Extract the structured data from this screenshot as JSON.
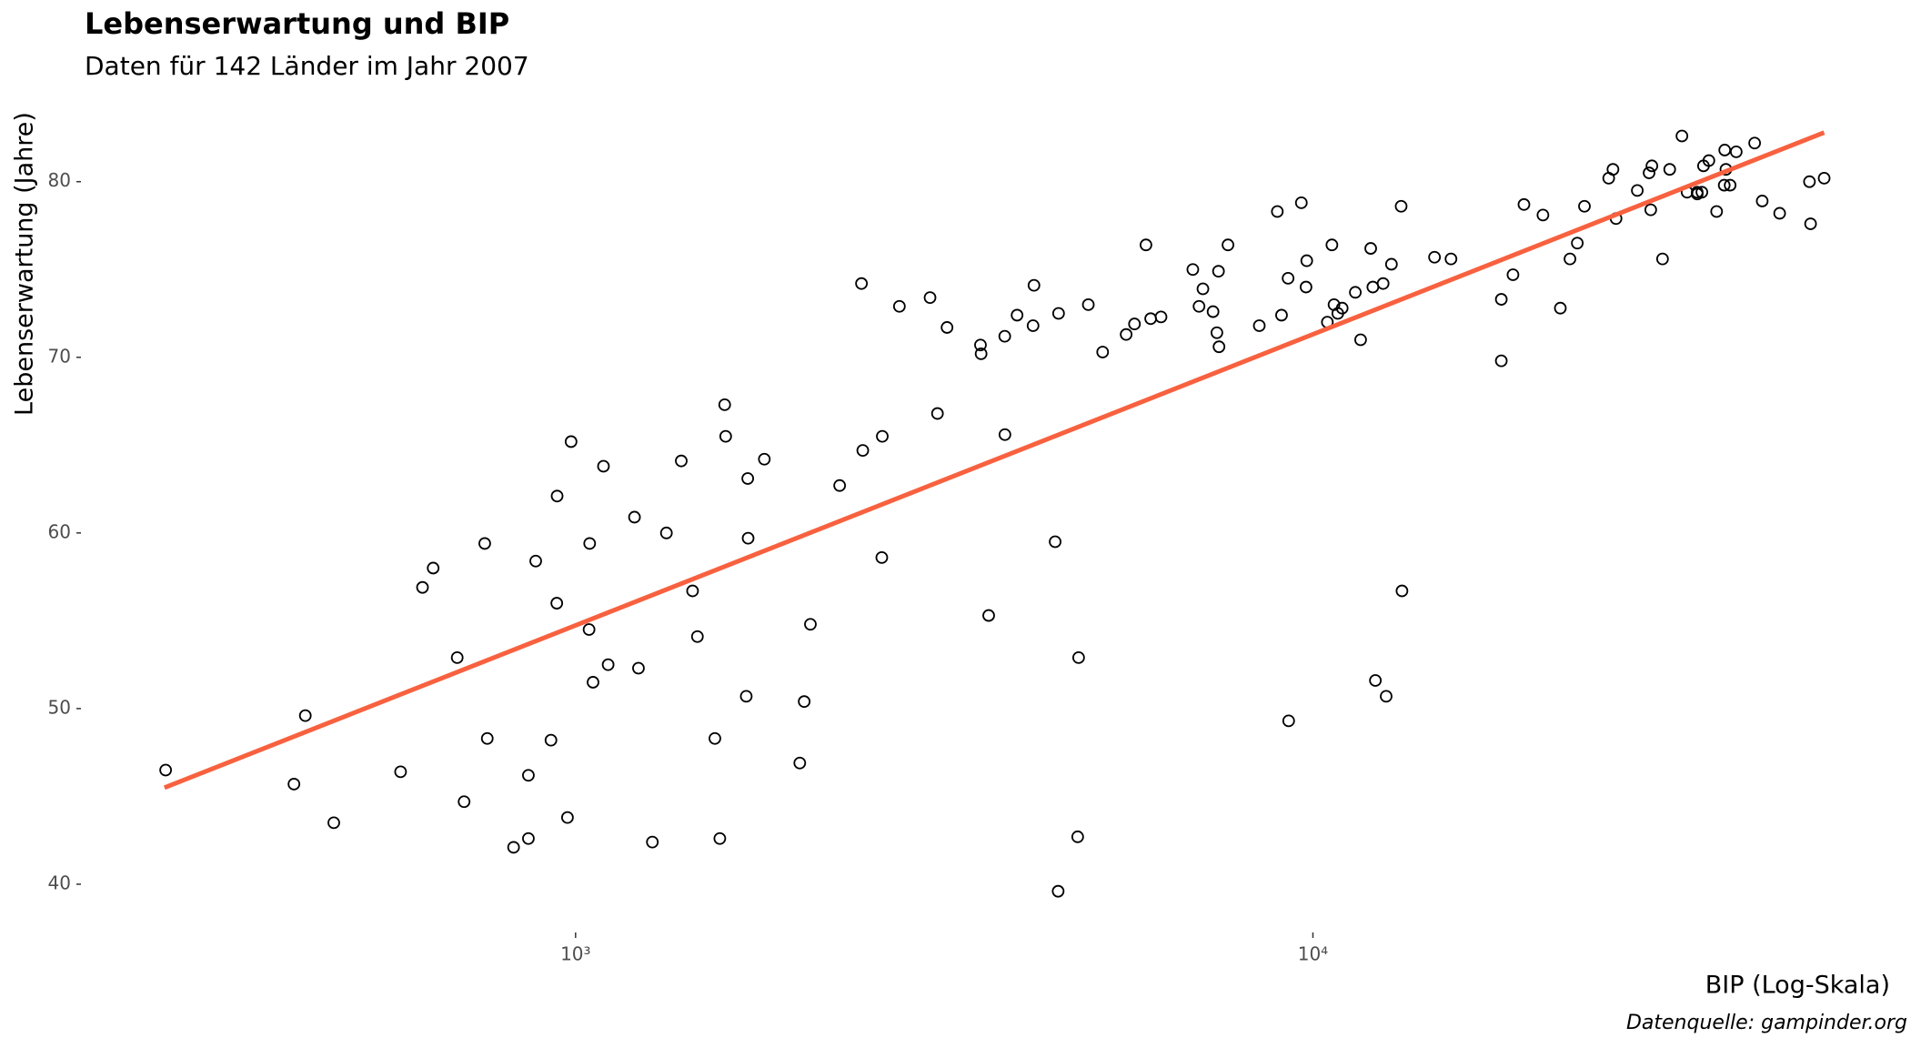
{
  "chart_data": {
    "type": "scatter",
    "title": "Lebenserwartung und BIP",
    "subtitle": "Daten für 142 Länder im Jahr 2007",
    "x_label": "BIP (Log-Skala)",
    "y_label": "Lebenserwartung (Jahre)",
    "caption": "Datenquelle: gampinder.org",
    "x_scale": "log",
    "grid": false,
    "color": "#000000",
    "xlim": [
      214,
      64000
    ],
    "ylim": [
      37.46,
      84.75
    ],
    "xticks": [
      {
        "value": 1000,
        "label": "10³"
      },
      {
        "value": 10000,
        "label": "10⁴"
      }
    ],
    "yticks": [
      40,
      50,
      60,
      70,
      80
    ],
    "x": [
      975,
      5937,
      6223,
      4797,
      12779,
      34435,
      36126,
      29796,
      1391,
      33693,
      1441,
      3822,
      7446,
      12570,
      9066,
      10681,
      1217,
      430,
      1714,
      2042,
      36319,
      706,
      1704,
      13172,
      4959,
      7007,
      986,
      278,
      3633,
      9645,
      1545,
      14619,
      8948,
      22833,
      35278,
      2082,
      6025,
      6873,
      5581,
      5728,
      12154,
      641,
      691,
      33207,
      30470,
      13206,
      753,
      32170,
      1328,
      27538,
      5186,
      943,
      579,
      1202,
      3548,
      39725,
      18009,
      36181,
      2452,
      3541,
      11606,
      4471,
      40676,
      25523,
      28570,
      7321,
      31656,
      4519,
      1463,
      1593,
      23348,
      47307,
      10461,
      1569,
      415,
      12058,
      1045,
      759,
      12452,
      1043,
      1803,
      10957,
      11978,
      3096,
      9254,
      3820,
      824,
      944,
      4811,
      1091,
      36798,
      25185,
      2749,
      620,
      2014,
      49357,
      22316,
      2606,
      9809,
      4173,
      7409,
      3190,
      15390,
      20510,
      19329,
      7670,
      10808,
      863,
      1598,
      21655,
      1712,
      9787,
      863,
      47143,
      18678,
      25768,
      926,
      9270,
      28821,
      3970,
      2602,
      4513,
      33860,
      37506,
      4185,
      28718,
      1107,
      7458,
      883,
      18009,
      7093,
      8458,
      1056,
      33203,
      42952,
      10611,
      11416,
      2442,
      3025,
      2281,
      1271,
      470
    ],
    "values": [
      43.8,
      76.4,
      72.3,
      42.7,
      75.3,
      81.2,
      79.8,
      75.6,
      64.1,
      79.4,
      56.7,
      65.6,
      74.9,
      50.7,
      72.4,
      73,
      52.3,
      49.6,
      59.7,
      50.4,
      80.7,
      44.7,
      50.7,
      78.6,
      73,
      72.9,
      65.2,
      46.5,
      55.3,
      78.8,
      48.3,
      75.7,
      78.3,
      76.5,
      78.3,
      54.8,
      72.2,
      75,
      71.3,
      71.9,
      51.6,
      58,
      52.9,
      79.3,
      80.7,
      56.7,
      59.4,
      79.4,
      60,
      79.5,
      70.3,
      56,
      46.4,
      60.9,
      70.2,
      82.2,
      73.3,
      81.8,
      64.7,
      70.7,
      71,
      59.5,
      78.9,
      80.7,
      80.5,
      72.6,
      82.6,
      72.5,
      54.1,
      67.3,
      78.6,
      77.6,
      72,
      42.6,
      45.7,
      74,
      59.4,
      48.3,
      74.2,
      54.5,
      64.2,
      72.8,
      76.2,
      66.8,
      74.5,
      71.2,
      42.1,
      62.1,
      52.9,
      63.8,
      79.8,
      80.2,
      72.9,
      56.9,
      46.9,
      80.2,
      75.6,
      65.5,
      75.5,
      71.8,
      71.4,
      71.7,
      75.6,
      78.1,
      78.7,
      76.4,
      72.5,
      46.2,
      65.5,
      72.8,
      63.1,
      74,
      42.6,
      80,
      74.7,
      77.9,
      48.2,
      49.3,
      80.9,
      72.4,
      58.6,
      39.6,
      80.9,
      81.7,
      74.1,
      78.4,
      52.5,
      70.6,
      58.4,
      69.8,
      73.9,
      71.8,
      51.5,
      79.4,
      78.2,
      76.4,
      73.7,
      74.2,
      73.4,
      62.7,
      42.4,
      43.5
    ],
    "trend": {
      "x": [
        277,
        49357
      ],
      "y": [
        45.5,
        82.8
      ],
      "color": "#f8613f"
    }
  }
}
